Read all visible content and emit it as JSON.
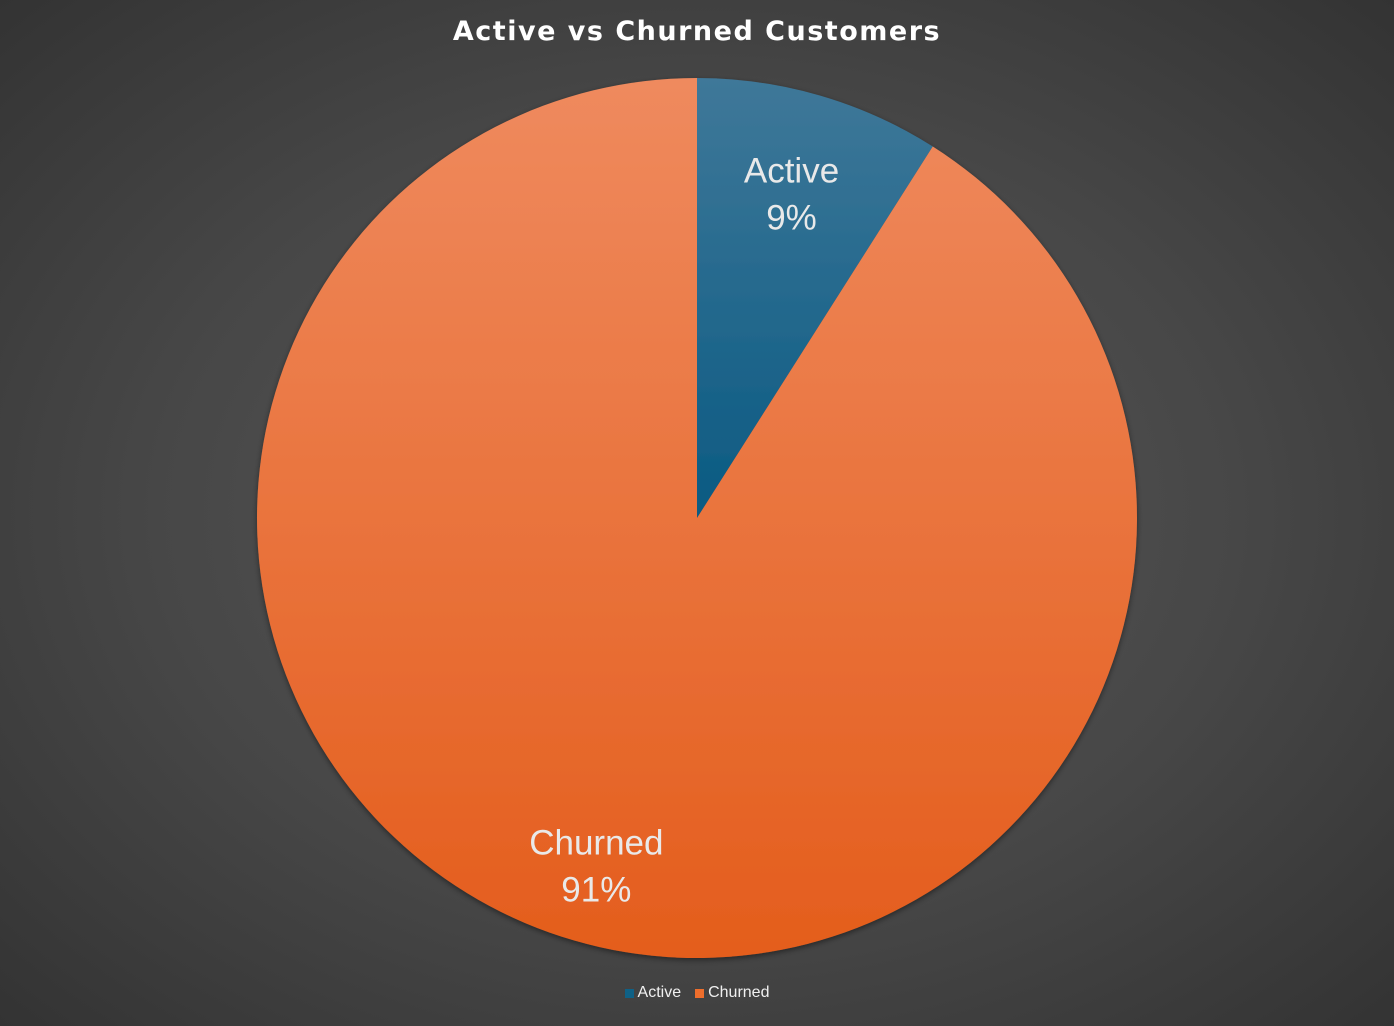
{
  "chart_data": {
    "type": "pie",
    "title": "Active vs Churned Customers",
    "categories": [
      "Active",
      "Churned"
    ],
    "values": [
      9,
      91
    ],
    "data_labels": [
      "9%",
      "91%"
    ],
    "colors": [
      "#0f6186",
      "#ee6e2c"
    ],
    "start_angle_deg": 0,
    "direction": "clockwise",
    "legend_position": "bottom",
    "grid": false
  }
}
